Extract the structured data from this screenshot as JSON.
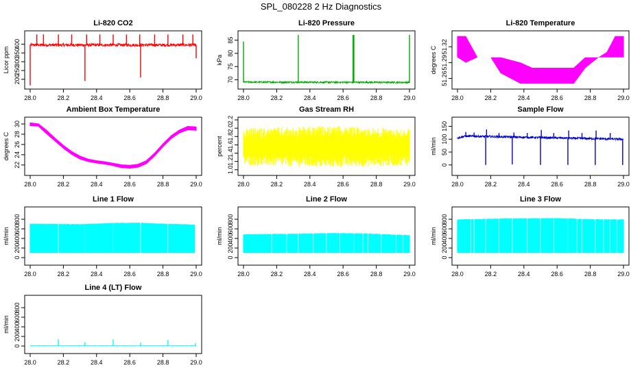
{
  "page": {
    "title": "SPL_080228  2 Hz Diagnostics"
  },
  "chart_data": [
    {
      "id": "co2",
      "type": "line",
      "title": "Li-820 CO2",
      "xlabel": "",
      "ylabel": "Licor ppm",
      "color": "#ff0000",
      "xlim": [
        28.0,
        29.0
      ],
      "ylim": [
        160,
        460
      ],
      "xticks": [
        "28.0",
        "28.2",
        "28.4",
        "28.6",
        "28.8",
        "29.0"
      ],
      "yticks": [
        {
          "v": 200,
          "label": "200"
        },
        {
          "v": 250,
          "label": "250"
        },
        {
          "v": 300,
          "label": "300"
        },
        {
          "v": 350,
          "label": "350"
        },
        {
          "v": 400,
          "label": "400"
        }
      ],
      "style": "noisy",
      "baseline": [
        [
          28.0,
          395
        ],
        [
          29.0,
          395
        ]
      ],
      "noise": 8,
      "spikes": [
        {
          "x": 28.0,
          "y": 165
        },
        {
          "x": 28.04,
          "y": 455
        },
        {
          "x": 28.08,
          "y": 455
        },
        {
          "x": 28.17,
          "y": 455
        },
        {
          "x": 28.25,
          "y": 455
        },
        {
          "x": 28.33,
          "y": 190
        },
        {
          "x": 28.34,
          "y": 455
        },
        {
          "x": 28.42,
          "y": 455
        },
        {
          "x": 28.5,
          "y": 455
        },
        {
          "x": 28.58,
          "y": 455
        },
        {
          "x": 28.66,
          "y": 455
        },
        {
          "x": 28.665,
          "y": 210
        },
        {
          "x": 28.75,
          "y": 455
        },
        {
          "x": 28.83,
          "y": 455
        },
        {
          "x": 28.92,
          "y": 455
        },
        {
          "x": 28.98,
          "y": 455
        },
        {
          "x": 29.0,
          "y": 320
        }
      ]
    },
    {
      "id": "pressure",
      "type": "line",
      "title": "Li-820 Pressure",
      "xlabel": "",
      "ylabel": "kPa",
      "color": "#00aa00",
      "xlim": [
        28.0,
        29.0
      ],
      "ylim": [
        67.5,
        87.5
      ],
      "xticks": [
        "28.0",
        "28.2",
        "28.4",
        "28.6",
        "28.8",
        "29.0"
      ],
      "yticks": [
        {
          "v": 70,
          "label": "70"
        },
        {
          "v": 75,
          "label": "75"
        },
        {
          "v": 80,
          "label": "80"
        },
        {
          "v": 85,
          "label": "85"
        }
      ],
      "style": "noisy",
      "baseline": [
        [
          28.0,
          69.1
        ],
        [
          29.0,
          69.0
        ]
      ],
      "noise": 0.3,
      "spikes": [
        {
          "x": 28.0,
          "y": 84.5
        },
        {
          "x": 28.33,
          "y": 87.0
        },
        {
          "x": 28.66,
          "y": 87.0
        },
        {
          "x": 28.665,
          "y": 87.0
        },
        {
          "x": 29.0,
          "y": 87.0
        }
      ]
    },
    {
      "id": "licor-temp",
      "type": "line",
      "title": "Li-820 Temperature",
      "xlabel": "",
      "ylabel": "degrees C",
      "color": "#ff00ff",
      "xlim": [
        28.0,
        29.0
      ],
      "ylim": [
        51.245,
        51.345
      ],
      "xticks": [
        "28.0",
        "28.2",
        "28.4",
        "28.6",
        "28.8",
        "29.0"
      ],
      "yticks": [
        {
          "v": 51.26,
          "label": "51.26"
        },
        {
          "v": 51.29,
          "label": "51.29"
        },
        {
          "v": 51.32,
          "label": "51.32"
        }
      ],
      "style": "band",
      "band": [
        [
          28.0,
          51.3,
          51.34
        ],
        [
          28.05,
          51.29,
          51.34
        ],
        [
          28.12,
          51.3,
          51.3
        ],
        [
          28.2,
          51.3,
          51.3
        ],
        [
          28.26,
          51.27,
          51.3
        ],
        [
          28.38,
          51.25,
          51.29
        ],
        [
          28.45,
          51.25,
          51.28
        ],
        [
          28.55,
          51.25,
          51.28
        ],
        [
          28.7,
          51.25,
          51.28
        ],
        [
          28.77,
          51.28,
          51.3
        ],
        [
          28.85,
          51.3,
          51.3
        ],
        [
          28.9,
          51.3,
          51.31
        ],
        [
          28.95,
          51.3,
          51.34
        ],
        [
          29.0,
          51.3,
          51.34
        ]
      ]
    },
    {
      "id": "box-temp",
      "type": "line",
      "title": "Ambient Box Temperature",
      "xlabel": "",
      "ylabel": "degrees C",
      "color": "#ff00ff",
      "xlim": [
        28.0,
        29.0
      ],
      "ylim": [
        20.5,
        30.8
      ],
      "xticks": [
        "28.0",
        "28.2",
        "28.4",
        "28.6",
        "28.8",
        "29.0"
      ],
      "yticks": [
        {
          "v": 22,
          "label": "22"
        },
        {
          "v": 24,
          "label": "24"
        },
        {
          "v": 26,
          "label": "26"
        },
        {
          "v": 28,
          "label": "28"
        },
        {
          "v": 30,
          "label": "30"
        }
      ],
      "style": "band",
      "band": [
        [
          28.0,
          29.6,
          30.3
        ],
        [
          28.05,
          29.5,
          30.1
        ],
        [
          28.1,
          28.0,
          28.8
        ],
        [
          28.15,
          26.6,
          27.3
        ],
        [
          28.2,
          25.2,
          25.9
        ],
        [
          28.25,
          24.0,
          24.7
        ],
        [
          28.3,
          23.1,
          23.8
        ],
        [
          28.35,
          22.6,
          23.2
        ],
        [
          28.4,
          22.3,
          22.9
        ],
        [
          28.45,
          22.1,
          22.7
        ],
        [
          28.5,
          21.8,
          22.4
        ],
        [
          28.55,
          21.4,
          22.1
        ],
        [
          28.6,
          21.3,
          22.0
        ],
        [
          28.65,
          21.5,
          22.2
        ],
        [
          28.7,
          22.2,
          22.9
        ],
        [
          28.75,
          23.7,
          24.4
        ],
        [
          28.8,
          25.5,
          26.2
        ],
        [
          28.85,
          27.1,
          27.8
        ],
        [
          28.9,
          28.2,
          28.9
        ],
        [
          28.95,
          28.8,
          29.6
        ],
        [
          29.0,
          28.7,
          29.5
        ]
      ]
    },
    {
      "id": "rh",
      "type": "line",
      "title": "Gas Stream RH",
      "xlabel": "",
      "ylabel": "percent",
      "color": "#ffff00",
      "xlim": [
        28.0,
        29.0
      ],
      "ylim": [
        0.93,
        2.2
      ],
      "xticks": [
        "28.0",
        "28.2",
        "28.4",
        "28.6",
        "28.8",
        "29.0"
      ],
      "yticks": [
        {
          "v": 1.0,
          "label": "1.0"
        },
        {
          "v": 1.2,
          "label": "1.2"
        },
        {
          "v": 1.4,
          "label": "1.4"
        },
        {
          "v": 1.6,
          "label": "1.6"
        },
        {
          "v": 1.8,
          "label": "1.8"
        },
        {
          "v": 2.0,
          "label": "2.0"
        },
        {
          "v": 2.2,
          "label": "2.2"
        }
      ],
      "style": "band",
      "band": [
        [
          28.0,
          1.1,
          2.0
        ],
        [
          28.5,
          1.05,
          2.05
        ],
        [
          29.0,
          1.1,
          2.0
        ]
      ],
      "noise": 0.45
    },
    {
      "id": "sample-flow",
      "type": "line",
      "title": "Sample Flow",
      "xlabel": "",
      "ylabel": "ml/min",
      "color": "#0000cc",
      "xlim": [
        28.0,
        29.0
      ],
      "ylim": [
        -30,
        175
      ],
      "xticks": [
        "28.0",
        "28.2",
        "28.4",
        "28.6",
        "28.8",
        "29.0"
      ],
      "yticks": [
        {
          "v": 0,
          "label": "0"
        },
        {
          "v": 50,
          "label": "50"
        },
        {
          "v": 100,
          "label": "100"
        },
        {
          "v": 150,
          "label": "150"
        }
      ],
      "style": "noisy",
      "baseline": [
        [
          28.0,
          105
        ],
        [
          28.05,
          112
        ],
        [
          29.0,
          100
        ]
      ],
      "noise": 4,
      "spikes": [
        {
          "x": 28.05,
          "y": 128
        },
        {
          "x": 28.1,
          "y": 126
        },
        {
          "x": 28.17,
          "y": 0
        },
        {
          "x": 28.175,
          "y": 138
        },
        {
          "x": 28.25,
          "y": 124
        },
        {
          "x": 28.33,
          "y": 2
        },
        {
          "x": 28.34,
          "y": 126
        },
        {
          "x": 28.42,
          "y": 124
        },
        {
          "x": 28.5,
          "y": 0
        },
        {
          "x": 28.505,
          "y": 136
        },
        {
          "x": 28.58,
          "y": 124
        },
        {
          "x": 28.665,
          "y": 0
        },
        {
          "x": 28.67,
          "y": 134
        },
        {
          "x": 28.75,
          "y": 124
        },
        {
          "x": 28.83,
          "y": 0
        },
        {
          "x": 28.835,
          "y": 134
        },
        {
          "x": 28.92,
          "y": 124
        },
        {
          "x": 28.995,
          "y": 0
        }
      ]
    },
    {
      "id": "line1-flow",
      "type": "area",
      "title": "Line 1 Flow",
      "xlabel": "",
      "ylabel": "ml/min",
      "color": "#00ffff",
      "xlim": [
        28.0,
        29.0
      ],
      "ylim": [
        -100,
        1000
      ],
      "xticks": [
        "28.0",
        "28.2",
        "28.4",
        "28.6",
        "28.8",
        "29.0"
      ],
      "yticks": [
        {
          "v": 0,
          "label": "0"
        },
        {
          "v": 200,
          "label": "200"
        },
        {
          "v": 400,
          "label": "400"
        },
        {
          "v": 600,
          "label": "600"
        },
        {
          "v": 800,
          "label": "800"
        }
      ],
      "style": "block",
      "floor": 100,
      "top": [
        [
          28.0,
          710
        ],
        [
          28.3,
          700
        ],
        [
          28.5,
          725
        ],
        [
          28.65,
          730
        ],
        [
          28.85,
          705
        ],
        [
          28.99,
          690
        ]
      ],
      "gaps": [
        28.17,
        28.33,
        28.5,
        28.665,
        28.83
      ],
      "end_x": 28.99
    },
    {
      "id": "line2-flow",
      "type": "area",
      "title": "Line 2 Flow",
      "xlabel": "",
      "ylabel": "ml/min",
      "color": "#00ffff",
      "xlim": [
        28.0,
        29.0
      ],
      "ylim": [
        -100,
        1000
      ],
      "xticks": [
        "28.0",
        "28.2",
        "28.4",
        "28.6",
        "28.8",
        "29.0"
      ],
      "yticks": [
        {
          "v": 0,
          "label": "0"
        },
        {
          "v": 200,
          "label": "200"
        },
        {
          "v": 400,
          "label": "400"
        },
        {
          "v": 600,
          "label": "600"
        },
        {
          "v": 800,
          "label": "800"
        }
      ],
      "style": "block",
      "floor": 100,
      "top": [
        [
          28.0,
          490
        ],
        [
          28.3,
          500
        ],
        [
          28.55,
          515
        ],
        [
          28.75,
          505
        ],
        [
          29.0,
          470
        ]
      ],
      "gaps": [
        28.17,
        28.26,
        28.33,
        28.42,
        28.5,
        28.58,
        28.665,
        28.72,
        28.75,
        28.83,
        28.92,
        28.96
      ],
      "end_x": 29.0
    },
    {
      "id": "line3-flow",
      "type": "area",
      "title": "Line 3 Flow",
      "xlabel": "",
      "ylabel": "ml/min",
      "color": "#00ffff",
      "xlim": [
        28.0,
        29.0
      ],
      "ylim": [
        -100,
        1000
      ],
      "xticks": [
        "28.0",
        "28.2",
        "28.4",
        "28.6",
        "28.8",
        "29.0"
      ],
      "yticks": [
        {
          "v": 0,
          "label": "0"
        },
        {
          "v": 200,
          "label": "200"
        },
        {
          "v": 400,
          "label": "400"
        },
        {
          "v": 600,
          "label": "600"
        },
        {
          "v": 800,
          "label": "800"
        }
      ],
      "style": "block",
      "floor": 100,
      "top": [
        [
          28.0,
          800
        ],
        [
          28.3,
          820
        ],
        [
          28.6,
          825
        ],
        [
          28.8,
          805
        ],
        [
          29.0,
          800
        ]
      ],
      "gaps": [
        28.08,
        28.1,
        28.17,
        28.25,
        28.33,
        28.42,
        28.5,
        28.58,
        28.665,
        28.72,
        28.75,
        28.83,
        28.88,
        28.92,
        28.96
      ],
      "end_x": 29.0
    },
    {
      "id": "line4-flow",
      "type": "line",
      "title": "Line 4 (LT) Flow",
      "xlabel": "",
      "ylabel": "ml/min",
      "color": "#00ffff",
      "xlim": [
        28.0,
        29.0
      ],
      "ylim": [
        -100,
        1000
      ],
      "xticks": [
        "28.0",
        "28.2",
        "28.4",
        "28.6",
        "28.8",
        "29.0"
      ],
      "yticks": [
        {
          "v": 0,
          "label": "0"
        },
        {
          "v": 200,
          "label": "200"
        },
        {
          "v": 400,
          "label": "400"
        },
        {
          "v": 600,
          "label": "600"
        },
        {
          "v": 800,
          "label": "800"
        }
      ],
      "style": "noisy",
      "baseline": [
        [
          28.0,
          5
        ],
        [
          29.0,
          5
        ]
      ],
      "noise": 3,
      "spikes": [
        {
          "x": 28.17,
          "y": 140
        },
        {
          "x": 28.33,
          "y": 80
        },
        {
          "x": 28.5,
          "y": 140
        },
        {
          "x": 28.665,
          "y": 70
        },
        {
          "x": 28.83,
          "y": 130
        },
        {
          "x": 28.995,
          "y": 60
        }
      ]
    }
  ]
}
